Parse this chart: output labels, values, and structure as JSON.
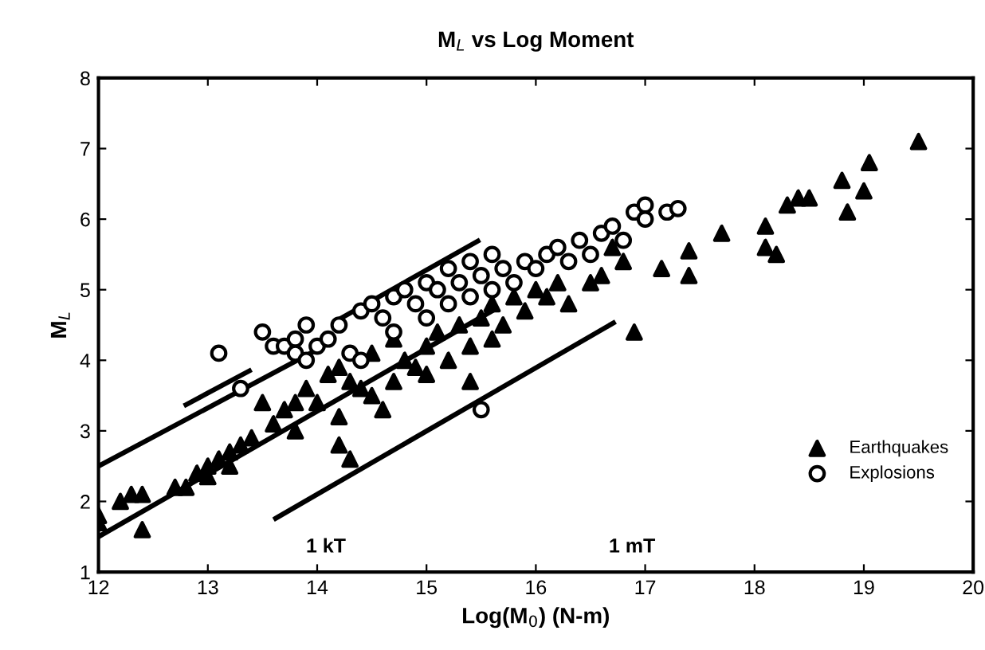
{
  "chart_data": {
    "type": "scatter",
    "title": "M$_{L}$ vs Log Moment",
    "xlabel": "Log(M$_{0}$) (N-m)",
    "ylabel": "M$_{L}$",
    "xlim": [
      12,
      20
    ],
    "ylim": [
      1,
      8
    ],
    "xticks": [
      12,
      13,
      14,
      15,
      16,
      17,
      18,
      19,
      20
    ],
    "yticks": [
      1,
      2,
      3,
      4,
      5,
      6,
      7,
      8
    ],
    "legend": "bottom right",
    "grid": false,
    "series": [
      {
        "name": "Earthquakes",
        "marker": "triangle",
        "color": "#000000",
        "x": [
          12.0,
          12.0,
          12.2,
          12.3,
          12.4,
          12.4,
          12.7,
          12.8,
          12.9,
          13.0,
          13.0,
          13.1,
          13.2,
          13.2,
          13.3,
          13.4,
          13.5,
          13.6,
          13.7,
          13.8,
          13.8,
          13.9,
          14.0,
          14.1,
          14.2,
          14.2,
          14.3,
          14.2,
          14.3,
          14.4,
          14.5,
          14.5,
          14.6,
          14.7,
          14.7,
          14.8,
          14.9,
          15.0,
          15.0,
          15.1,
          15.2,
          15.3,
          15.4,
          15.4,
          15.5,
          15.6,
          15.6,
          15.7,
          15.8,
          15.9,
          16.0,
          16.1,
          16.2,
          16.3,
          16.5,
          16.6,
          16.7,
          16.8,
          16.9,
          17.15,
          17.4,
          17.4,
          17.7,
          18.1,
          18.2,
          18.1,
          18.3,
          18.4,
          18.5,
          18.8,
          18.85,
          19.0,
          19.05,
          19.5
        ],
        "values": [
          1.8,
          1.7,
          2.0,
          2.1,
          1.6,
          2.1,
          2.2,
          2.2,
          2.4,
          2.5,
          2.35,
          2.6,
          2.5,
          2.7,
          2.8,
          2.9,
          3.4,
          3.1,
          3.3,
          3.0,
          3.4,
          3.6,
          3.4,
          3.8,
          3.2,
          2.8,
          2.6,
          3.9,
          3.7,
          3.6,
          4.1,
          3.5,
          3.3,
          3.7,
          4.3,
          4.0,
          3.9,
          4.2,
          3.8,
          4.4,
          4.0,
          4.5,
          3.7,
          4.2,
          4.6,
          4.3,
          4.8,
          4.5,
          4.9,
          4.7,
          5.0,
          4.9,
          5.1,
          4.8,
          5.1,
          5.2,
          5.6,
          5.4,
          4.4,
          5.3,
          5.55,
          5.2,
          5.8,
          5.9,
          5.5,
          5.6,
          6.2,
          6.3,
          6.3,
          6.55,
          6.1,
          6.4,
          6.8,
          7.1
        ]
      },
      {
        "name": "Explosions",
        "marker": "circle",
        "color": "#000000",
        "x": [
          13.1,
          13.3,
          13.5,
          13.6,
          13.7,
          13.8,
          13.8,
          13.9,
          13.9,
          14.0,
          14.1,
          14.2,
          14.3,
          14.4,
          14.4,
          14.5,
          14.6,
          14.7,
          14.7,
          14.8,
          14.9,
          15.0,
          15.0,
          15.1,
          15.2,
          15.2,
          15.3,
          15.4,
          15.4,
          15.5,
          15.6,
          15.6,
          15.7,
          15.8,
          15.9,
          16.0,
          16.1,
          16.2,
          16.3,
          16.4,
          16.5,
          16.6,
          16.7,
          16.8,
          16.9,
          17.0,
          17.0,
          17.2,
          17.3,
          15.5
        ],
        "values": [
          4.1,
          3.6,
          4.4,
          4.2,
          4.2,
          4.3,
          4.1,
          4.5,
          4.0,
          4.2,
          4.3,
          4.5,
          4.1,
          4.7,
          4.0,
          4.8,
          4.6,
          4.9,
          4.4,
          5.0,
          4.8,
          5.1,
          4.6,
          5.0,
          5.3,
          4.8,
          5.1,
          5.4,
          4.9,
          5.2,
          5.5,
          5.0,
          5.3,
          5.1,
          5.4,
          5.3,
          5.5,
          5.6,
          5.4,
          5.7,
          5.5,
          5.8,
          5.9,
          5.7,
          6.1,
          6.2,
          6.0,
          6.1,
          6.15,
          3.3
        ]
      },
      {
        "type": "line",
        "color": "#000000",
        "x": [
          12.0,
          14.0
        ],
        "values": [
          2.5,
          4.15
        ]
      },
      {
        "type": "line",
        "color": "#000000",
        "x": [
          12.0,
          15.6
        ],
        "values": [
          1.5,
          4.7
        ]
      },
      {
        "type": "line",
        "color": "#000000",
        "x": [
          12.8,
          13.38
        ],
        "values": [
          3.37,
          3.85
        ]
      },
      {
        "type": "line",
        "color": "#000000",
        "x": [
          14.2,
          15.47
        ],
        "values": [
          4.58,
          5.69
        ]
      },
      {
        "type": "line",
        "color": "#000000",
        "x": [
          13.62,
          16.71
        ],
        "values": [
          1.76,
          4.53
        ]
      }
    ],
    "annotations": [
      "1 kT",
      "1 mT"
    ]
  }
}
